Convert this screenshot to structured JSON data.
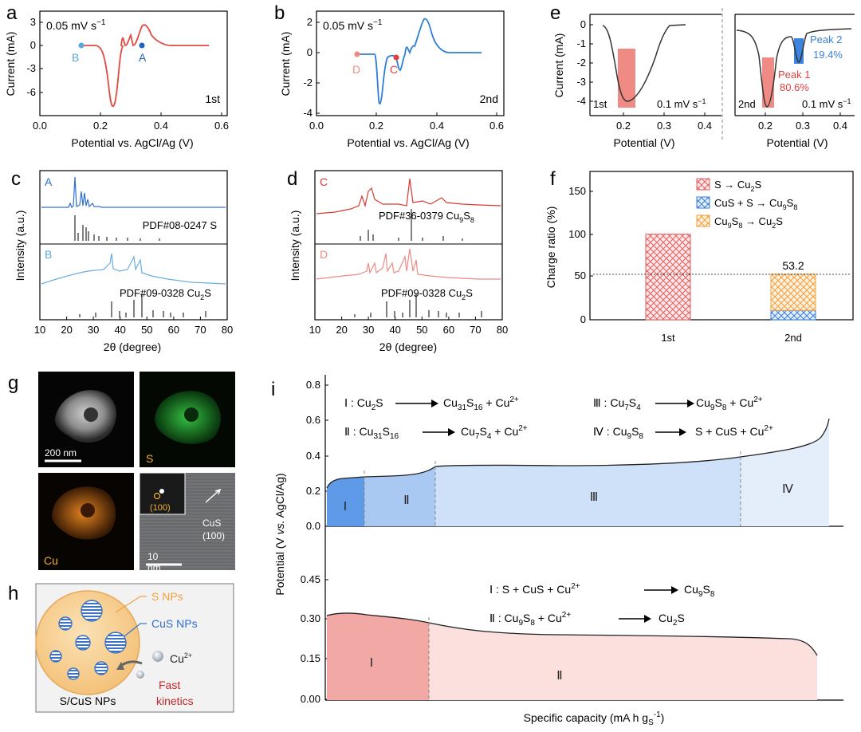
{
  "panels": {
    "a": {
      "letter": "a",
      "scan_rate": "0.05 mV s",
      "scan_rate_sup": "−1",
      "cycle": "1st",
      "ylabel": "Current  (mA)",
      "xlabel": "Potential vs. AgCl/Ag (V)",
      "xticks": [
        "0.0",
        "0.2",
        "0.4",
        "0.6"
      ],
      "yticks": [
        "3",
        "0",
        "-3",
        "-6"
      ],
      "point_labels": [
        "B",
        "A"
      ]
    },
    "b": {
      "letter": "b",
      "scan_rate": "0.05 mV s",
      "scan_rate_sup": "−1",
      "cycle": "2nd",
      "ylabel": "Current  (mA)",
      "xlabel": "Potential vs. AgCl/Ag (V)",
      "xticks": [
        "0.0",
        "0.2",
        "0.4",
        "0.6"
      ],
      "yticks": [
        "2",
        "0",
        "-2",
        "-4"
      ],
      "point_labels": [
        "D",
        "C"
      ]
    },
    "c": {
      "letter": "c",
      "ylabel": "Intensity (a.u.)",
      "xlabel": "2θ (degree)",
      "xticks": [
        "10",
        "20",
        "30",
        "40",
        "50",
        "60",
        "70",
        "80"
      ],
      "top_label": "A",
      "top_ref": "PDF#08-0247  S",
      "bottom_label": "B",
      "bottom_ref": "PDF#09-0328  Cu",
      "bottom_ref_sub": "2",
      "bottom_ref_tail": "S"
    },
    "d": {
      "letter": "d",
      "ylabel": "Intensity (a.u.)",
      "xlabel": "2θ (degree)",
      "xticks": [
        "10",
        "20",
        "30",
        "40",
        "50",
        "60",
        "70",
        "80"
      ],
      "top_label": "C",
      "top_ref": "PDF#36-0379  Cu",
      "top_ref_sub1": "9",
      "top_ref_mid": "S",
      "top_ref_sub2": "8",
      "bottom_label": "D",
      "bottom_ref": "PDF#09-0328  Cu",
      "bottom_ref_sub": "2",
      "bottom_ref_tail": "S"
    },
    "e": {
      "letter": "e",
      "ylabel": "Current  (mA)",
      "xlabel": "Potential (V)",
      "left_cycle": "1st",
      "right_cycle": "2nd",
      "scan_rate": "0.1 mV s",
      "scan_rate_sup": "−1",
      "xticks": [
        "0.2",
        "0.3",
        "0.4"
      ],
      "yticks": [
        "0",
        "-1",
        "-2",
        "-3",
        "-4"
      ],
      "peak1": "Peak 1",
      "peak1_pct": "80.6%",
      "peak2": "Peak 2",
      "peak2_pct": "19.4%"
    },
    "f": {
      "letter": "f",
      "ylabel": "Charge ratio (%)",
      "yticks": [
        "0",
        "50",
        "100",
        "150"
      ],
      "categories": [
        "1st",
        "2nd"
      ],
      "value_label": "53.2",
      "legend": [
        {
          "a": "S → Cu",
          "s1": "2",
          "b": "S"
        },
        {
          "a": "CuS + S → Cu",
          "s1": "9",
          "b": "S",
          "s2": "8"
        },
        {
          "a": "Cu",
          "s0": "9",
          "m": "S",
          "s1": "8",
          "b": " → Cu",
          "s2": "2",
          "c": "S"
        }
      ]
    },
    "g": {
      "letter": "g",
      "scale1": "200 nm",
      "label_s": "S",
      "label_cu": "Cu",
      "fft_label": "(100)",
      "cus_label": "CuS",
      "cus_plane": "(100)",
      "scale2_a": "10",
      "scale2_b": "nm"
    },
    "h": {
      "letter": "h",
      "s_nps": "S NPs",
      "cus_nps": "CuS NPs",
      "cu_ion": "Cu",
      "cu_ion_sup": "2+",
      "fast": "Fast",
      "kinetics": "kinetics",
      "caption": "S/CuS NPs"
    },
    "i": {
      "letter": "i",
      "ylabel_a": "Potential (V ",
      "ylabel_b": "vs.",
      "ylabel_c": " AgCl/Ag)",
      "xlabel": "Specific capacity (mA h g",
      "xlabel_sub": "S",
      "xlabel_sup": "-1",
      "xlabel_end": ")",
      "top_yticks": [
        "0.0",
        "0.2",
        "0.4",
        "0.6",
        "0.8"
      ],
      "bottom_yticks": [
        "0.00",
        "0.15",
        "0.30",
        "0.45"
      ],
      "top_regions": [
        "Ⅰ",
        "Ⅱ",
        "Ⅲ",
        "Ⅳ"
      ],
      "bottom_regions": [
        "Ⅰ",
        "Ⅱ"
      ],
      "eq_top": {
        "r1": "Ⅰ :",
        "r2": "Ⅱ :",
        "r3": "Ⅲ :",
        "r4": "Ⅳ :"
      },
      "eq_bottom": {
        "r1": "Ⅰ :",
        "r2": "Ⅱ :"
      }
    }
  },
  "chart_data": [
    {
      "type": "line",
      "title": "",
      "xlabel": "Potential vs. AgCl/Ag (V)",
      "ylabel": "Current (mA)",
      "xlim": [
        0.0,
        0.62
      ],
      "ylim": [
        -7,
        3.5
      ],
      "series": [
        {
          "x": [
            0.15,
            0.2,
            0.22,
            0.235,
            0.245,
            0.255,
            0.27,
            0.3,
            0.34,
            0.35,
            0.36,
            0.38,
            0.45,
            0.56
          ],
          "y": [
            0,
            0,
            -2,
            -5,
            -6.3,
            -5,
            -1,
            0.2,
            0.4,
            1.2,
            1.8,
            1,
            0,
            0
          ]
        }
      ]
    },
    {
      "type": "line",
      "title": "",
      "xlabel": "Potential vs. AgCl/Ag (V)",
      "ylabel": "Current (mA)",
      "xlim": [
        0.0,
        0.62
      ],
      "ylim": [
        -4.2,
        2.6
      ],
      "series": [
        {
          "x": [
            0.15,
            0.2,
            0.215,
            0.22,
            0.23,
            0.26,
            0.3,
            0.33,
            0.36,
            0.4,
            0.45,
            0.56
          ],
          "y": [
            0,
            -0.2,
            -2.5,
            -3.4,
            -1.5,
            -0.3,
            -0.8,
            0.5,
            1.8,
            0.6,
            0.05,
            0.05
          ]
        }
      ]
    },
    {
      "type": "bar",
      "title": "",
      "xlabel": "",
      "ylabel": "Charge ratio (%)",
      "categories": [
        "1st",
        "2nd"
      ],
      "ylim": [
        0,
        160
      ],
      "series": [
        {
          "name": "S → Cu2S",
          "values": [
            100,
            0
          ]
        },
        {
          "name": "CuS + S → Cu9S8",
          "values": [
            0,
            11
          ]
        },
        {
          "name": "Cu9S8 → Cu2S",
          "values": [
            0,
            42.2
          ]
        }
      ]
    }
  ]
}
